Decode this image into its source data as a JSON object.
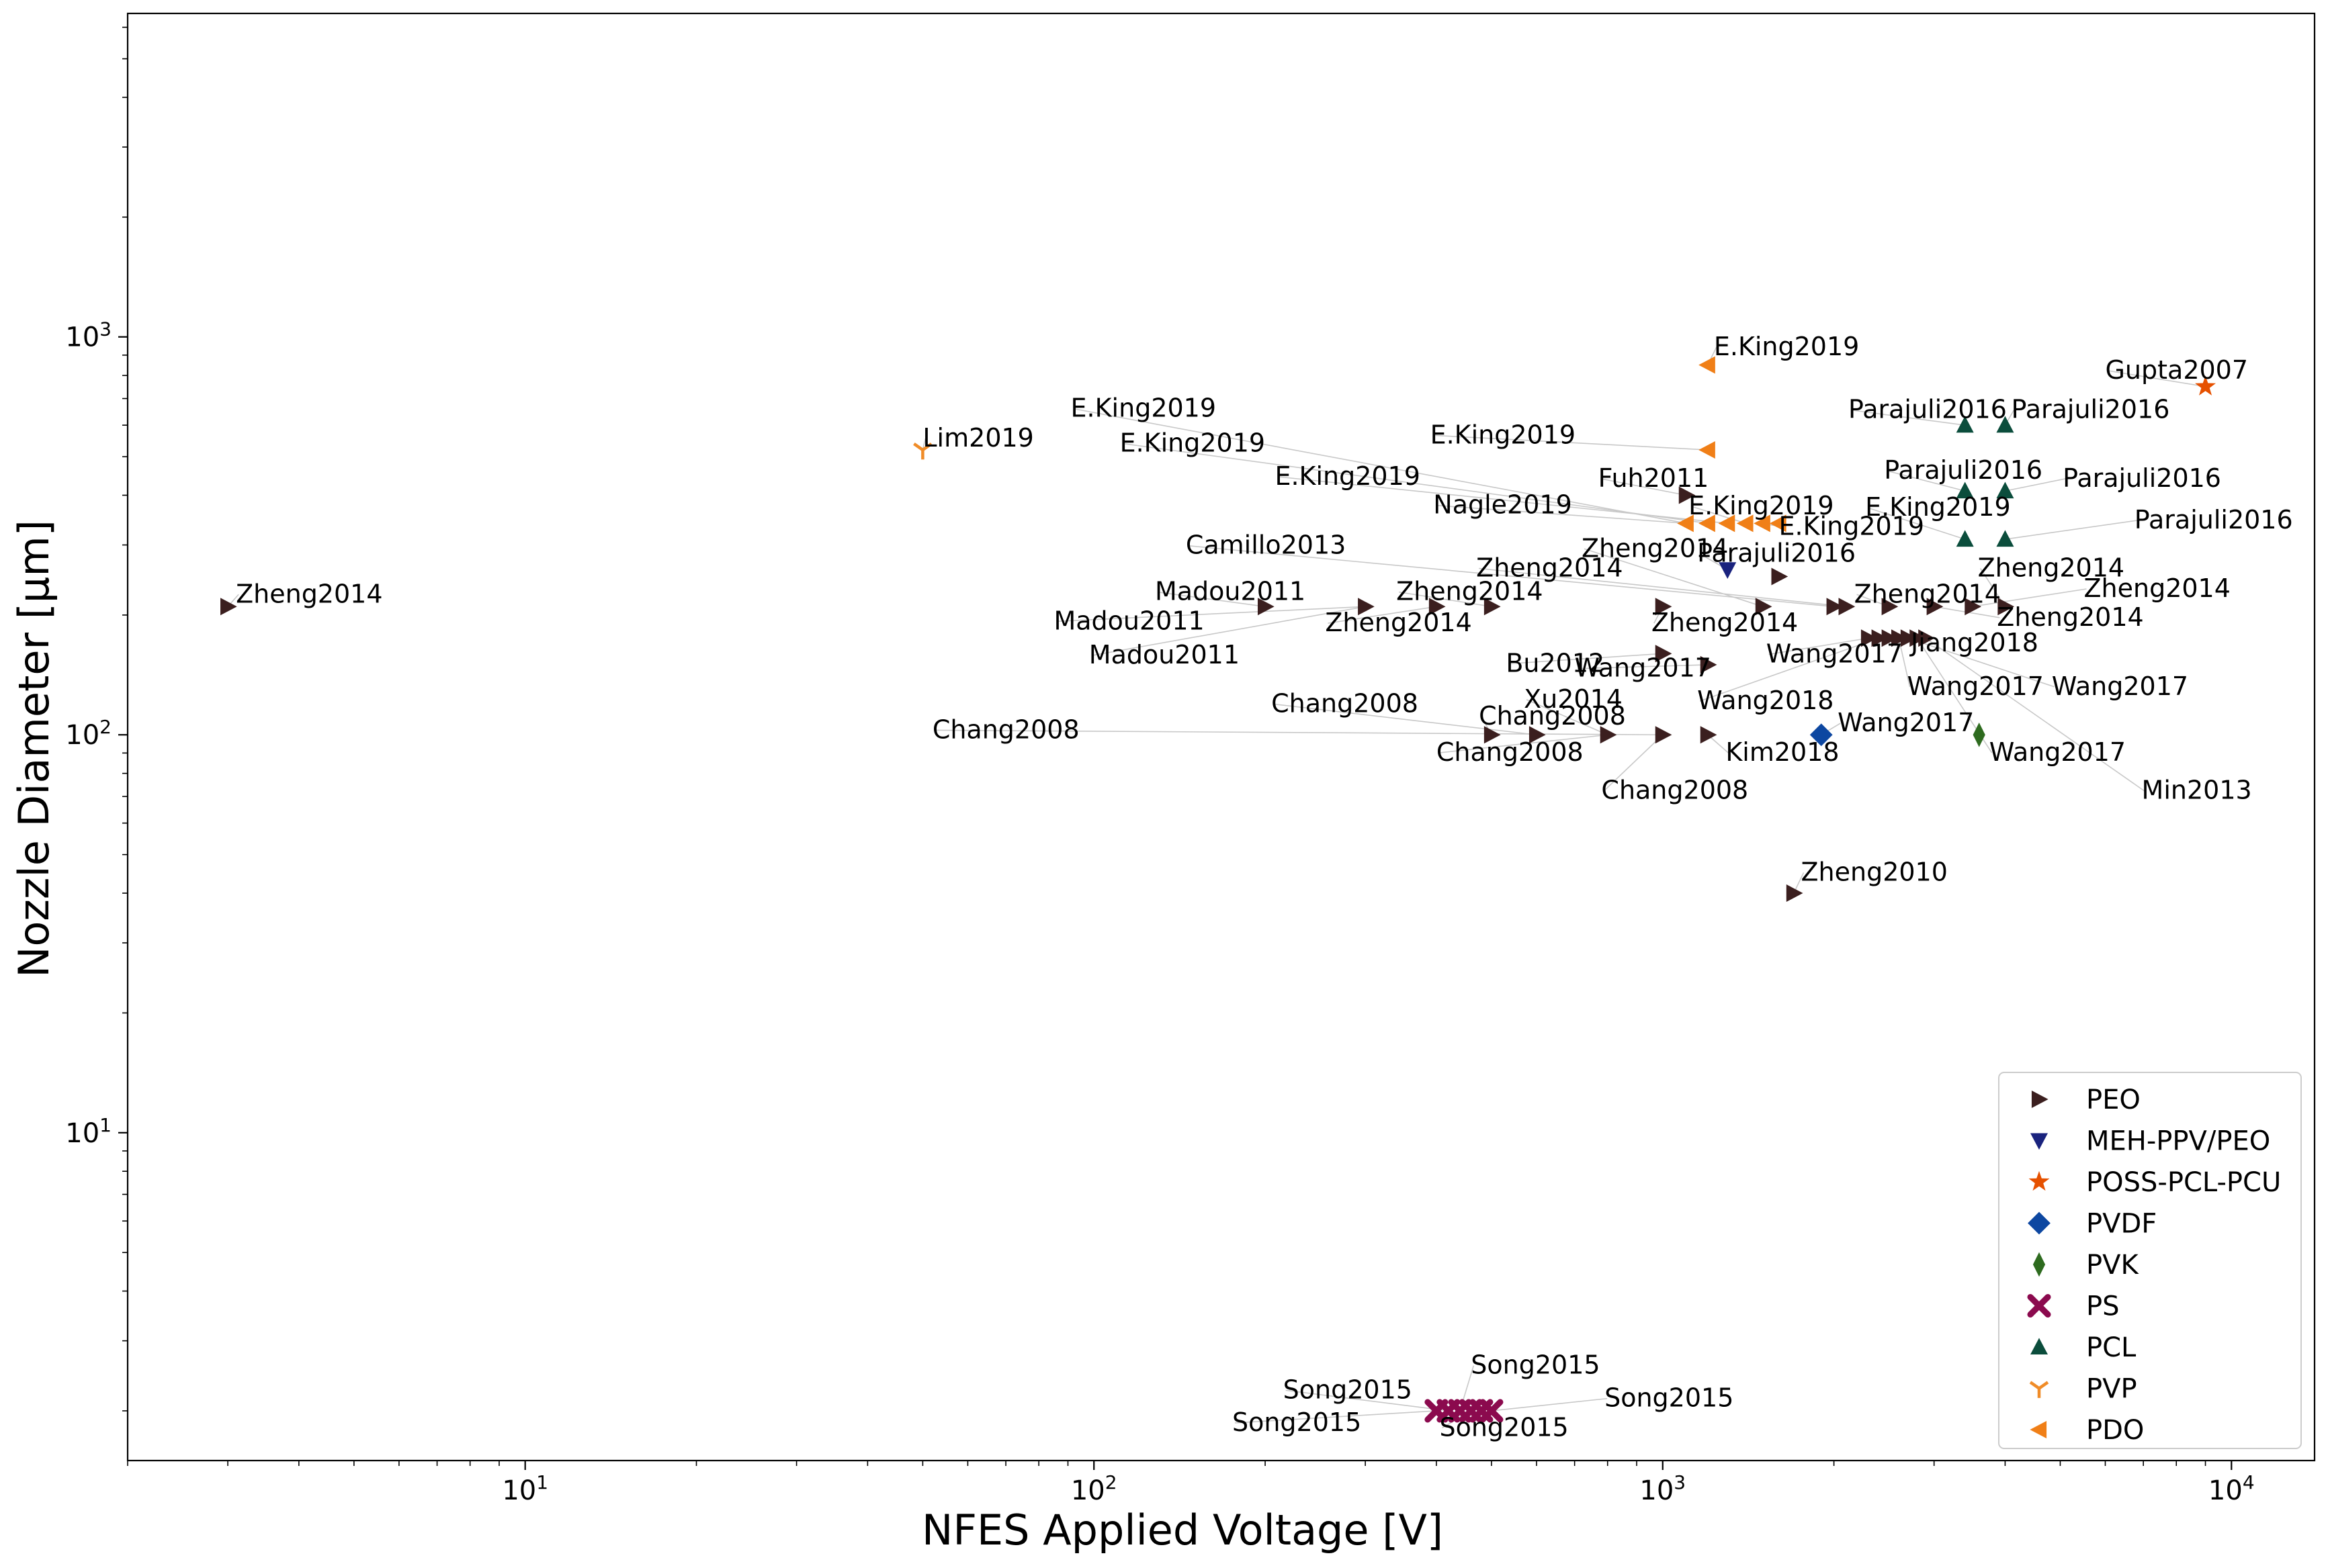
{
  "chart_data": {
    "type": "scatter",
    "title": "",
    "xlabel": "NFES Applied Voltage    [V]",
    "ylabel": "Nozzle Diameter    [μm]",
    "xscale": "log",
    "yscale": "log",
    "xlim": [
      2,
      14000
    ],
    "ylim": [
      1.5,
      6500
    ],
    "x_ticks": [
      {
        "value": 10,
        "base": "10",
        "exp": "1"
      },
      {
        "value": 100,
        "base": "10",
        "exp": "2"
      },
      {
        "value": 1000,
        "base": "10",
        "exp": "3"
      },
      {
        "value": 10000,
        "base": "10",
        "exp": "4"
      }
    ],
    "y_ticks": [
      {
        "value": 10,
        "base": "10",
        "exp": "1"
      },
      {
        "value": 100,
        "base": "10",
        "exp": "2"
      },
      {
        "value": 1000,
        "base": "10",
        "exp": "3"
      }
    ],
    "grid": false,
    "legend_position": "lower-right",
    "series": [
      {
        "name": "PEO",
        "marker": "triangle-right",
        "color": "#3b1f1f",
        "points": [
          {
            "x": 3,
            "y": 210
          },
          {
            "x": 200,
            "y": 210
          },
          {
            "x": 300,
            "y": 210
          },
          {
            "x": 400,
            "y": 210
          },
          {
            "x": 500,
            "y": 210
          },
          {
            "x": 1000,
            "y": 210
          },
          {
            "x": 1500,
            "y": 210
          },
          {
            "x": 2000,
            "y": 210
          },
          {
            "x": 2100,
            "y": 210
          },
          {
            "x": 2500,
            "y": 210
          },
          {
            "x": 3000,
            "y": 210
          },
          {
            "x": 3500,
            "y": 210
          },
          {
            "x": 4000,
            "y": 210
          },
          {
            "x": 1100,
            "y": 400
          },
          {
            "x": 1600,
            "y": 250
          },
          {
            "x": 1000,
            "y": 160
          },
          {
            "x": 1200,
            "y": 150
          },
          {
            "x": 2300,
            "y": 175
          },
          {
            "x": 2400,
            "y": 175
          },
          {
            "x": 2500,
            "y": 175
          },
          {
            "x": 2600,
            "y": 175
          },
          {
            "x": 2700,
            "y": 175
          },
          {
            "x": 2800,
            "y": 175
          },
          {
            "x": 2900,
            "y": 175
          },
          {
            "x": 500,
            "y": 100
          },
          {
            "x": 600,
            "y": 100
          },
          {
            "x": 800,
            "y": 100
          },
          {
            "x": 1000,
            "y": 100
          },
          {
            "x": 1200,
            "y": 100
          },
          {
            "x": 1700,
            "y": 40
          }
        ]
      },
      {
        "name": "MEH-PPV/PEO",
        "marker": "triangle-down",
        "color": "#1a237e",
        "points": [
          {
            "x": 1300,
            "y": 260
          }
        ]
      },
      {
        "name": "POSS-PCL-PCU",
        "marker": "star",
        "color": "#e65100",
        "points": [
          {
            "x": 9000,
            "y": 750
          }
        ]
      },
      {
        "name": "PVDF",
        "marker": "diamond",
        "color": "#0d47a1",
        "points": [
          {
            "x": 1900,
            "y": 100
          }
        ]
      },
      {
        "name": "PVK",
        "marker": "thin-diamond",
        "color": "#2e6b1f",
        "points": [
          {
            "x": 3600,
            "y": 100
          }
        ]
      },
      {
        "name": "PS",
        "marker": "x",
        "color": "#8b0a4e",
        "points": [
          {
            "x": 400,
            "y": 2
          },
          {
            "x": 420,
            "y": 2
          },
          {
            "x": 440,
            "y": 2
          },
          {
            "x": 460,
            "y": 2
          },
          {
            "x": 480,
            "y": 2
          },
          {
            "x": 500,
            "y": 2
          }
        ]
      },
      {
        "name": "PCL",
        "marker": "triangle-up",
        "color": "#0b4d3c",
        "points": [
          {
            "x": 3400,
            "y": 600
          },
          {
            "x": 4000,
            "y": 600
          },
          {
            "x": 3400,
            "y": 410
          },
          {
            "x": 4000,
            "y": 410
          },
          {
            "x": 3400,
            "y": 310
          },
          {
            "x": 4000,
            "y": 310
          }
        ]
      },
      {
        "name": "PVP",
        "marker": "tri-down",
        "color": "#f08c28",
        "points": [
          {
            "x": 50,
            "y": 520
          }
        ]
      },
      {
        "name": "PDO",
        "marker": "triangle-left",
        "color": "#f07f17",
        "points": [
          {
            "x": 1200,
            "y": 850
          },
          {
            "x": 1200,
            "y": 520
          },
          {
            "x": 1100,
            "y": 340
          },
          {
            "x": 1200,
            "y": 340
          },
          {
            "x": 1300,
            "y": 340
          },
          {
            "x": 1400,
            "y": 340
          },
          {
            "x": 1500,
            "y": 340
          },
          {
            "x": 1600,
            "y": 340
          }
        ]
      }
    ],
    "annotations": [
      {
        "text": "Zheng2014",
        "x": 3,
        "y": 210,
        "tx": 3.1,
        "ty": 215
      },
      {
        "text": "Lim2019",
        "x": 50,
        "y": 520,
        "tx": 50,
        "ty": 530
      },
      {
        "text": "E.King2019",
        "x": 1200,
        "y": 850,
        "tx": 1230,
        "ty": 900
      },
      {
        "text": "Gupta2007",
        "x": 9000,
        "y": 750,
        "tx": 6000,
        "ty": 785
      },
      {
        "text": "Parajuli2016",
        "x": 3400,
        "y": 600,
        "tx": 2120,
        "ty": 625
      },
      {
        "text": "Parajuli2016",
        "x": 4000,
        "y": 600,
        "tx": 4100,
        "ty": 625
      },
      {
        "text": "E.King2019",
        "x": 1100,
        "y": 340,
        "tx": 91,
        "ty": 630
      },
      {
        "text": "E.King2019",
        "x": 1200,
        "y": 520,
        "tx": 390,
        "ty": 540
      },
      {
        "text": "E.King2019",
        "x": 1200,
        "y": 340,
        "tx": 111,
        "ty": 515
      },
      {
        "text": "Parajuli2016",
        "x": 3400,
        "y": 410,
        "tx": 2450,
        "ty": 440
      },
      {
        "text": "Parajuli2016",
        "x": 4000,
        "y": 410,
        "tx": 5050,
        "ty": 420
      },
      {
        "text": "Fuh2011",
        "x": 1100,
        "y": 400,
        "tx": 770,
        "ty": 420
      },
      {
        "text": "E.King2019",
        "x": 1300,
        "y": 340,
        "tx": 208,
        "ty": 425
      },
      {
        "text": "Nagle2019",
        "x": 1100,
        "y": 340,
        "tx": 395,
        "ty": 360
      },
      {
        "text": "E.King2019",
        "x": 1400,
        "y": 340,
        "tx": 1110,
        "ty": 358
      },
      {
        "text": "E.King2019",
        "x": 3400,
        "y": 310,
        "tx": 2270,
        "ty": 355
      },
      {
        "text": "E.King2019",
        "x": 1500,
        "y": 340,
        "tx": 1600,
        "ty": 318
      },
      {
        "text": "Camillo2013",
        "x": 2000,
        "y": 210,
        "tx": 145,
        "ty": 285
      },
      {
        "text": "Zheng2014",
        "x": 1500,
        "y": 210,
        "tx": 720,
        "ty": 280
      },
      {
        "text": "Parajuli2016",
        "x": 1300,
        "y": 260,
        "tx": 1150,
        "ty": 272
      },
      {
        "text": "Parajuli2016",
        "x": 4000,
        "y": 310,
        "tx": 6750,
        "ty": 330
      },
      {
        "text": "Zheng2014",
        "x": 2100,
        "y": 210,
        "tx": 470,
        "ty": 250
      },
      {
        "text": "Zheng2014",
        "x": 4000,
        "y": 210,
        "tx": 3580,
        "ty": 250
      },
      {
        "text": "Madou2011",
        "x": 200,
        "y": 210,
        "tx": 128,
        "ty": 218
      },
      {
        "text": "Zheng2014",
        "x": 500,
        "y": 210,
        "tx": 340,
        "ty": 218
      },
      {
        "text": "Zheng2014",
        "x": 2500,
        "y": 210,
        "tx": 2170,
        "ty": 215
      },
      {
        "text": "Zheng2014",
        "x": 3500,
        "y": 210,
        "tx": 5500,
        "ty": 222
      },
      {
        "text": "Madou2011",
        "x": 300,
        "y": 210,
        "tx": 85,
        "ty": 184
      },
      {
        "text": "Zheng2014",
        "x": 400,
        "y": 210,
        "tx": 255,
        "ty": 182
      },
      {
        "text": "Zheng2014",
        "x": 1000,
        "y": 210,
        "tx": 955,
        "ty": 182
      },
      {
        "text": "Zheng2014",
        "x": 3000,
        "y": 210,
        "tx": 3870,
        "ty": 188
      },
      {
        "text": "Jiang2018",
        "x": 2900,
        "y": 175,
        "tx": 2730,
        "ty": 162
      },
      {
        "text": "Madou2011",
        "x": 300,
        "y": 210,
        "tx": 98,
        "ty": 151
      },
      {
        "text": "Wang2017",
        "x": 2300,
        "y": 175,
        "tx": 1520,
        "ty": 152
      },
      {
        "text": "Bu2012",
        "x": 1000,
        "y": 160,
        "tx": 530,
        "ty": 144
      },
      {
        "text": "Wang2017",
        "x": 1200,
        "y": 150,
        "tx": 700,
        "ty": 140
      },
      {
        "text": "Wang2017",
        "x": 2600,
        "y": 175,
        "tx": 2690,
        "ty": 126
      },
      {
        "text": "Wang2017",
        "x": 2700,
        "y": 175,
        "tx": 4830,
        "ty": 126
      },
      {
        "text": "Wang2018",
        "x": 2400,
        "y": 175,
        "tx": 1150,
        "ty": 116
      },
      {
        "text": "Chang2008",
        "x": 600,
        "y": 100,
        "tx": 205,
        "ty": 114
      },
      {
        "text": "Xu2014",
        "x": 800,
        "y": 100,
        "tx": 570,
        "ty": 117
      },
      {
        "text": "Chang2008",
        "x": 500,
        "y": 100,
        "tx": 475,
        "ty": 106
      },
      {
        "text": "Wang2017",
        "x": 1900,
        "y": 100,
        "tx": 2030,
        "ty": 102
      },
      {
        "text": "Chang2008",
        "x": 1000,
        "y": 100,
        "tx": 52,
        "ty": 98
      },
      {
        "text": "Chang2008",
        "x": 800,
        "y": 100,
        "tx": 400,
        "ty": 86
      },
      {
        "text": "Kim2018",
        "x": 1200,
        "y": 100,
        "tx": 1290,
        "ty": 86
      },
      {
        "text": "Wang2017",
        "x": 2800,
        "y": 175,
        "tx": 3750,
        "ty": 86
      },
      {
        "text": "Chang2008",
        "x": 1000,
        "y": 100,
        "tx": 780,
        "ty": 69
      },
      {
        "text": "Min2013",
        "x": 2900,
        "y": 175,
        "tx": 6950,
        "ty": 69
      },
      {
        "text": "Zheng2010",
        "x": 1700,
        "y": 40,
        "tx": 1750,
        "ty": 43
      },
      {
        "text": "Song2015",
        "x": 440,
        "y": 2,
        "tx": 460,
        "ty": 2.48
      },
      {
        "text": "Song2015",
        "x": 420,
        "y": 2,
        "tx": 215,
        "ty": 2.15
      },
      {
        "text": "Song2015",
        "x": 500,
        "y": 2,
        "tx": 790,
        "ty": 2.05
      },
      {
        "text": "Song2015",
        "x": 400,
        "y": 2,
        "tx": 175,
        "ty": 1.78
      },
      {
        "text": "Song2015",
        "x": 460,
        "y": 2,
        "tx": 405,
        "ty": 1.73
      }
    ]
  }
}
